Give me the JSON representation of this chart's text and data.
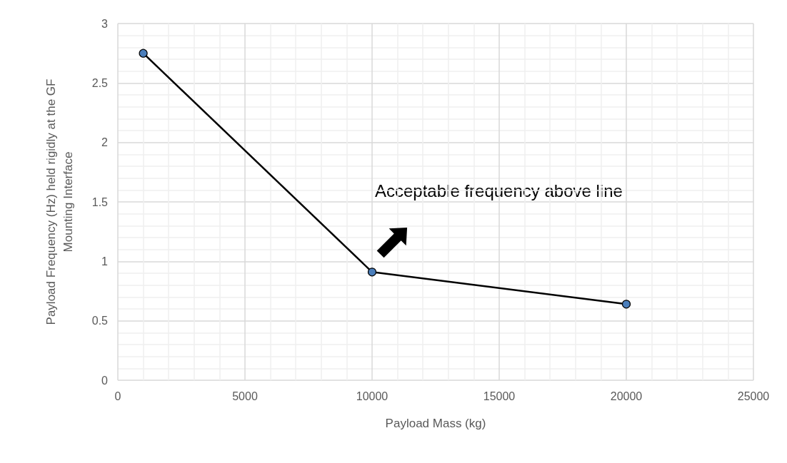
{
  "chart_data": {
    "type": "line",
    "xlabel": "Payload Mass (kg)",
    "ylabel": "Payload Frequency (Hz) held rigidly at the GF Mounting Interface",
    "x": [
      1000,
      10000,
      20000
    ],
    "series": [
      {
        "color": "#4a7ebb",
        "values": [
          2.75,
          0.91,
          0.64
        ]
      }
    ],
    "xlim": [
      0,
      25000
    ],
    "xticks": [
      0,
      5000,
      10000,
      15000,
      20000,
      25000
    ],
    "ylim": [
      0,
      3
    ],
    "yticks": [
      0,
      0.5,
      1,
      1.5,
      2,
      2.5,
      3
    ],
    "grid": true,
    "marker": "circle",
    "line_style": "solid",
    "annotations": [
      "Acceptable frequency above line"
    ]
  }
}
